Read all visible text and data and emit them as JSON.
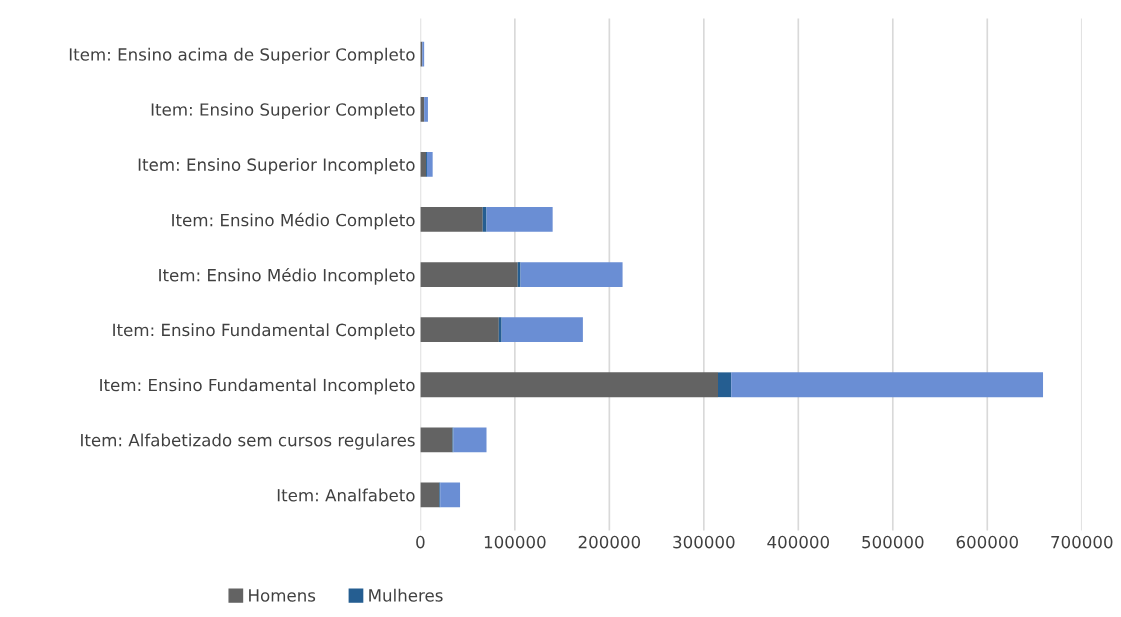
{
  "chart_data": {
    "type": "bar",
    "orientation": "horizontal",
    "stacked": true,
    "categories": [
      "Item: Ensino acima de Superior Completo",
      "Item: Ensino Superior Completo",
      "Item: Ensino Superior Incompleto",
      "Item: Ensino Médio Completo",
      "Item: Ensino Médio Incompleto",
      "Item: Ensino Fundamental Completo",
      "Item: Ensino Fundamental Incompleto",
      "Item: Alfabetizado sem cursos regulares",
      "Item: Analfabeto"
    ],
    "series": [
      {
        "name": "Homens",
        "color": "#636363",
        "values": [
          2000,
          4000,
          6000,
          66000,
          103000,
          83000,
          315000,
          34000,
          20000
        ]
      },
      {
        "name": "Mulheres",
        "color": "#255e91",
        "values": [
          0,
          0,
          1000,
          4000,
          3000,
          3000,
          14000,
          1000,
          1000
        ]
      },
      {
        "color": "#6a8ed4",
        "values": [
          2000,
          4000,
          6000,
          70000,
          108000,
          86000,
          330000,
          35000,
          21000
        ]
      }
    ],
    "xlim": [
      0,
      700000
    ],
    "xticks": [
      0,
      100000,
      200000,
      300000,
      400000,
      500000,
      600000,
      700000
    ],
    "grid": "x",
    "legend": "bottom"
  }
}
